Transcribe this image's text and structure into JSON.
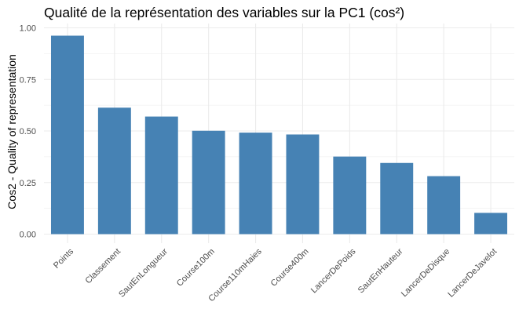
{
  "chart_data": {
    "type": "bar",
    "title": "Qualité de la représentation des variables sur la PC1 (cos²)",
    "xlabel": "",
    "ylabel": "Cos2 - Quality of representation",
    "categories": [
      "Points",
      "Classement",
      "SautEnLongueur",
      "Course100m",
      "Course110mHaies",
      "Course400m",
      "LancerDePoids",
      "SautEnHauteur",
      "LancerDeDisque",
      "LancerDeJavelot"
    ],
    "values": [
      0.962,
      0.613,
      0.57,
      0.501,
      0.492,
      0.483,
      0.376,
      0.345,
      0.281,
      0.103
    ],
    "ylim": [
      0,
      1.0
    ],
    "yticks": [
      0.0,
      0.25,
      0.5,
      0.75,
      1.0
    ],
    "ytick_labels": [
      "0.00",
      "0.25",
      "0.50",
      "0.75",
      "1.00"
    ],
    "grid": true,
    "bar_color": "#4682b4",
    "grid_color": "#ebebeb"
  }
}
